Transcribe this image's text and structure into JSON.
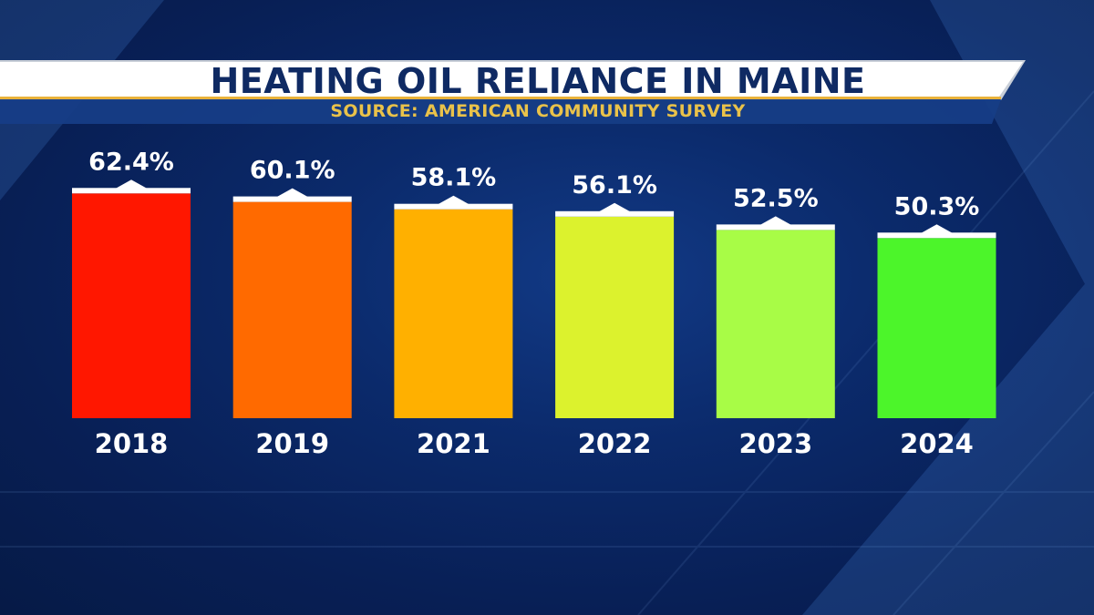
{
  "header": {
    "title": "HEATING OIL RELIANCE IN MAINE",
    "subtitle": "SOURCE: AMERICAN COMMUNITY SURVEY"
  },
  "colors": {
    "title_text": "#0f2a63",
    "subtitle_text": "#e9c24a",
    "background": "#0b2a6b",
    "bar_cap": "#ffffff"
  },
  "chart_data": {
    "type": "bar",
    "title": "HEATING OIL RELIANCE IN MAINE",
    "subtitle": "SOURCE: AMERICAN COMMUNITY SURVEY",
    "xlabel": "",
    "ylabel": "",
    "categories": [
      "2018",
      "2019",
      "2021",
      "2022",
      "2023",
      "2024"
    ],
    "values": [
      62.4,
      60.1,
      58.1,
      56.1,
      52.5,
      50.3
    ],
    "value_labels": [
      "62.4%",
      "60.1%",
      "58.1%",
      "56.1%",
      "52.5%",
      "50.3%"
    ],
    "bar_colors": [
      "#ff1700",
      "#ff6a00",
      "#ffb000",
      "#dcf22d",
      "#a8fc46",
      "#4cf52a"
    ],
    "grid": false,
    "legend": "none"
  }
}
